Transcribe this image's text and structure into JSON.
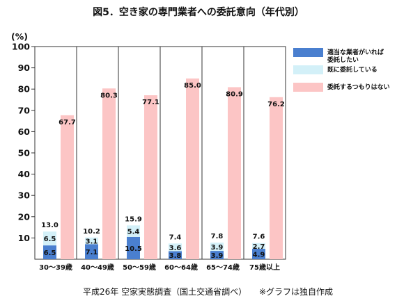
{
  "chart_data": {
    "type": "bar",
    "title": "図5．空き家の専門業者への委託意向（年代別）",
    "ylabel": "(%)",
    "ylim": [
      0,
      100
    ],
    "yticks": [
      10,
      20,
      30,
      40,
      50,
      60,
      70,
      80,
      90,
      100
    ],
    "grid": false,
    "legend_position": "right",
    "categories": [
      "30～39歳",
      "40～49歳",
      "50～59歳",
      "60～64歳",
      "65～74歳",
      "75歳以上"
    ],
    "series": [
      {
        "name": "適当な業者がいれば委託したい",
        "legend_lines": [
          "適当な業者がいれば",
          "委託したい"
        ],
        "color": "#4a7fcf",
        "stack": "a",
        "values": [
          6.5,
          7.1,
          10.5,
          3.8,
          3.9,
          4.9
        ]
      },
      {
        "name": "既に委託している",
        "legend_lines": [
          "既に委託している"
        ],
        "color": "#d3f0f8",
        "stack": "a",
        "values": [
          6.5,
          3.1,
          5.4,
          3.6,
          3.9,
          2.7
        ]
      },
      {
        "name": "委託するつもりはない",
        "legend_lines": [
          "委託するつもりはない"
        ],
        "color": "#fcc5c5",
        "stack": "b",
        "values": [
          67.7,
          80.3,
          77.1,
          85.0,
          80.9,
          76.2
        ]
      }
    ],
    "stack_totals": [
      13.0,
      10.2,
      15.9,
      7.4,
      7.8,
      7.6
    ]
  },
  "footer": {
    "source": "平成26年 空家実態調査（国土交通省調べ）",
    "note": "※グラフは独自作成"
  }
}
